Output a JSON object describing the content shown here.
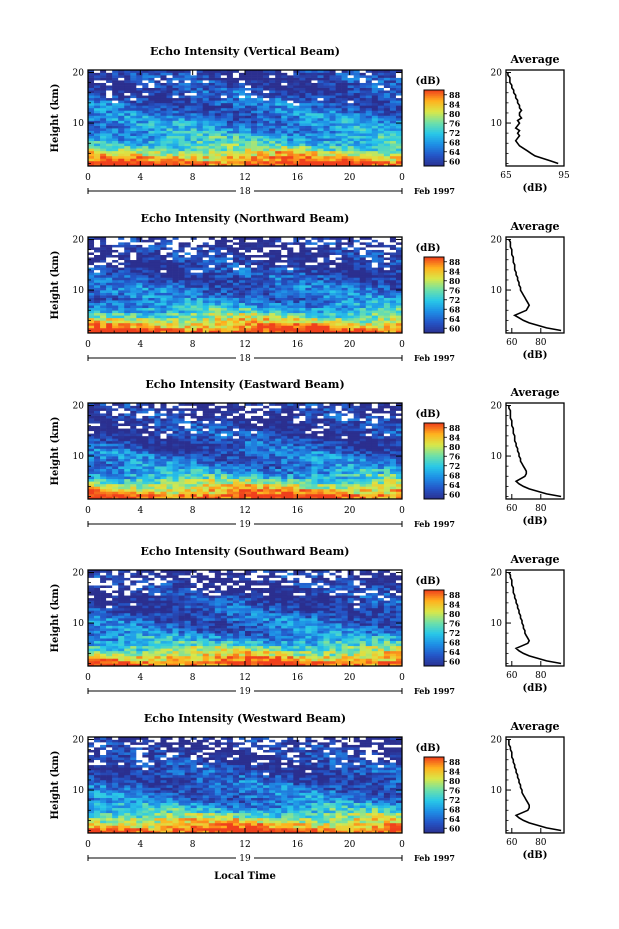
{
  "figure": {
    "x_axis_title": "Local Time",
    "month_label": "Feb 1997",
    "colorbar_unit": "(dB)",
    "colorbar_ticks": [
      "60",
      "64",
      "68",
      "72",
      "76",
      "80",
      "84",
      "88"
    ],
    "colorbar_stops": [
      "#2b2f8f",
      "#2456c8",
      "#1e8fe6",
      "#29c8e8",
      "#6fe0a8",
      "#d8e84a",
      "#ffb21e",
      "#f0401c"
    ]
  },
  "chart_data": [
    {
      "type": "heatmap",
      "title": "Echo Intensity (Vertical Beam)",
      "ylabel": "Height (km)",
      "x_ticks": [
        "0",
        "4",
        "8",
        "12",
        "16",
        "20",
        "0"
      ],
      "y_ticks": [
        "20",
        "10"
      ],
      "date_label": "18",
      "xlim": [
        0,
        24
      ],
      "ylim": [
        1.5,
        20.5
      ],
      "clim": [
        60,
        88
      ],
      "profile_levels": [
        88,
        84,
        80,
        76,
        73,
        71,
        70,
        69,
        68,
        67,
        66,
        65,
        64.5,
        64,
        63.5,
        63,
        62,
        61.5,
        61,
        60.5
      ],
      "profile": {
        "title": "Average",
        "xlabel": "(dB)",
        "x_ticks": [
          "65",
          "95"
        ],
        "y_ticks": [
          "20",
          "10"
        ],
        "xlim": [
          65,
          95
        ],
        "ylim": [
          1.5,
          20.5
        ],
        "heights": [
          2,
          2.5,
          3,
          3.5,
          4,
          4.5,
          5,
          5.5,
          6,
          6.5,
          7,
          7.5,
          8,
          8.5,
          9,
          9.5,
          10,
          10.5,
          11,
          11.5,
          12,
          12.5,
          13,
          13.5,
          14,
          14.5,
          15,
          15.5,
          16,
          16.5,
          17,
          17.5,
          18,
          18.5,
          19,
          19.5,
          20
        ],
        "values": [
          92,
          88,
          84,
          80,
          78,
          76,
          74,
          72,
          71,
          70,
          71,
          72,
          71,
          72,
          70,
          71,
          72,
          71,
          73,
          72,
          72,
          73,
          72,
          72,
          71,
          71,
          70,
          70,
          69,
          69,
          68,
          68,
          67,
          67,
          67,
          66,
          66
        ]
      }
    },
    {
      "type": "heatmap",
      "title": "Echo Intensity (Northward Beam)",
      "ylabel": "Height (km)",
      "x_ticks": [
        "0",
        "4",
        "8",
        "12",
        "16",
        "20",
        "0"
      ],
      "y_ticks": [
        "20",
        "10"
      ],
      "date_label": "18",
      "xlim": [
        0,
        24
      ],
      "ylim": [
        1.5,
        20.5
      ],
      "clim": [
        60,
        88
      ],
      "profile_levels": [
        88,
        84,
        80,
        76,
        72,
        69,
        67,
        66,
        65.5,
        65,
        64,
        63,
        62.5,
        62,
        61.5,
        61,
        60.5,
        60.2,
        60.1,
        60
      ],
      "profile": {
        "title": "Average",
        "xlabel": "(dB)",
        "x_ticks": [
          "60",
          "80"
        ],
        "y_ticks": [
          "20",
          "10"
        ],
        "xlim": [
          56,
          96
        ],
        "ylim": [
          1.5,
          20.5
        ],
        "heights": [
          2,
          2.5,
          3,
          3.5,
          4,
          4.5,
          5,
          5.5,
          6,
          6.5,
          7,
          7.5,
          8,
          8.5,
          9,
          9.5,
          10,
          10.5,
          11,
          11.5,
          12,
          12.5,
          13,
          13.5,
          14,
          14.5,
          15,
          15.5,
          16,
          16.5,
          17,
          17.5,
          18,
          18.5,
          19,
          19.5,
          20
        ],
        "values": [
          94,
          84,
          78,
          72,
          68,
          65,
          62,
          66,
          70,
          71,
          72,
          71,
          70,
          69,
          68,
          67,
          66,
          66,
          65,
          65,
          64,
          64,
          63,
          63,
          62,
          62,
          62,
          61,
          61,
          61,
          60,
          60,
          60,
          59,
          59,
          59,
          58
        ]
      }
    },
    {
      "type": "heatmap",
      "title": "Echo Intensity (Eastward Beam)",
      "ylabel": "Height (km)",
      "x_ticks": [
        "0",
        "4",
        "8",
        "12",
        "16",
        "20",
        "0"
      ],
      "y_ticks": [
        "20",
        "10"
      ],
      "date_label": "19",
      "xlim": [
        0,
        24
      ],
      "ylim": [
        1.5,
        20.5
      ],
      "clim": [
        60,
        88
      ],
      "profile_levels": [
        88,
        84,
        80,
        76,
        72,
        69,
        67,
        66,
        65.5,
        65,
        64,
        63,
        62.5,
        62,
        61.5,
        61,
        60.5,
        60.2,
        60.1,
        60
      ],
      "profile": {
        "title": "Average",
        "xlabel": "(dB)",
        "x_ticks": [
          "60",
          "80"
        ],
        "y_ticks": [
          "20",
          "10"
        ],
        "xlim": [
          56,
          96
        ],
        "ylim": [
          1.5,
          20.5
        ],
        "heights": [
          2,
          2.5,
          3,
          3.5,
          4,
          4.5,
          5,
          5.5,
          6,
          6.5,
          7,
          7.5,
          8,
          8.5,
          9,
          9.5,
          10,
          10.5,
          11,
          11.5,
          12,
          12.5,
          13,
          13.5,
          14,
          14.5,
          15,
          15.5,
          16,
          16.5,
          17,
          17.5,
          18,
          18.5,
          19,
          19.5,
          20
        ],
        "values": [
          94,
          84,
          78,
          72,
          68,
          65,
          63,
          66,
          69,
          70,
          70,
          69,
          68,
          67,
          66,
          66,
          65,
          65,
          64,
          64,
          63,
          63,
          62,
          62,
          62,
          61,
          61,
          61,
          60,
          60,
          60,
          59,
          59,
          59,
          59,
          58,
          58
        ]
      }
    },
    {
      "type": "heatmap",
      "title": "Echo Intensity (Southward Beam)",
      "ylabel": "Height (km)",
      "x_ticks": [
        "0",
        "4",
        "8",
        "12",
        "16",
        "20",
        "0"
      ],
      "y_ticks": [
        "20",
        "10"
      ],
      "date_label": "19",
      "xlim": [
        0,
        24
      ],
      "ylim": [
        1.5,
        20.5
      ],
      "clim": [
        60,
        88
      ],
      "profile_levels": [
        88,
        84,
        80,
        76,
        72,
        69,
        67,
        66,
        65.5,
        65,
        64,
        63,
        62.5,
        62,
        61.5,
        61,
        60.5,
        60.2,
        60.1,
        60
      ],
      "profile": {
        "title": "Average",
        "xlabel": "(dB)",
        "x_ticks": [
          "60",
          "80"
        ],
        "y_ticks": [
          "20",
          "10"
        ],
        "xlim": [
          56,
          96
        ],
        "ylim": [
          1.5,
          20.5
        ],
        "heights": [
          2,
          2.5,
          3,
          3.5,
          4,
          4.5,
          5,
          5.5,
          6,
          6.5,
          7,
          7.5,
          8,
          8.5,
          9,
          9.5,
          10,
          10.5,
          11,
          11.5,
          12,
          12.5,
          13,
          13.5,
          14,
          14.5,
          15,
          15.5,
          16,
          16.5,
          17,
          17.5,
          18,
          18.5,
          19,
          19.5,
          20
        ],
        "values": [
          94,
          84,
          78,
          72,
          68,
          65,
          63,
          67,
          71,
          72,
          71,
          70,
          69,
          69,
          68,
          68,
          67,
          67,
          66,
          66,
          65,
          65,
          64,
          64,
          63,
          63,
          62,
          62,
          61,
          61,
          61,
          60,
          60,
          60,
          59,
          59,
          58
        ]
      }
    },
    {
      "type": "heatmap",
      "title": "Echo Intensity (Westward Beam)",
      "ylabel": "Height (km)",
      "x_ticks": [
        "0",
        "4",
        "8",
        "12",
        "16",
        "20",
        "0"
      ],
      "y_ticks": [
        "20",
        "10"
      ],
      "date_label": "19",
      "xlim": [
        0,
        24
      ],
      "ylim": [
        1.5,
        20.5
      ],
      "clim": [
        60,
        88
      ],
      "profile_levels": [
        88,
        84,
        80,
        76,
        72,
        69,
        67,
        66,
        65.5,
        65,
        64,
        63,
        62.5,
        62,
        61.5,
        61,
        60.5,
        60.2,
        60.1,
        60
      ],
      "profile": {
        "title": "Average",
        "xlabel": "(dB)",
        "x_ticks": [
          "60",
          "80"
        ],
        "y_ticks": [
          "20",
          "10"
        ],
        "xlim": [
          56,
          96
        ],
        "ylim": [
          1.5,
          20.5
        ],
        "heights": [
          2,
          2.5,
          3,
          3.5,
          4,
          4.5,
          5,
          5.5,
          6,
          6.5,
          7,
          7.5,
          8,
          8.5,
          9,
          9.5,
          10,
          10.5,
          11,
          11.5,
          12,
          12.5,
          13,
          13.5,
          14,
          14.5,
          15,
          15.5,
          16,
          16.5,
          17,
          17.5,
          18,
          18.5,
          19,
          19.5,
          20
        ],
        "values": [
          94,
          84,
          78,
          72,
          68,
          65,
          63,
          67,
          71,
          72,
          72,
          71,
          70,
          69,
          68,
          67,
          67,
          66,
          66,
          65,
          65,
          64,
          64,
          63,
          63,
          62,
          62,
          61,
          61,
          60,
          60,
          60,
          59,
          59,
          58,
          58,
          58
        ]
      }
    }
  ]
}
